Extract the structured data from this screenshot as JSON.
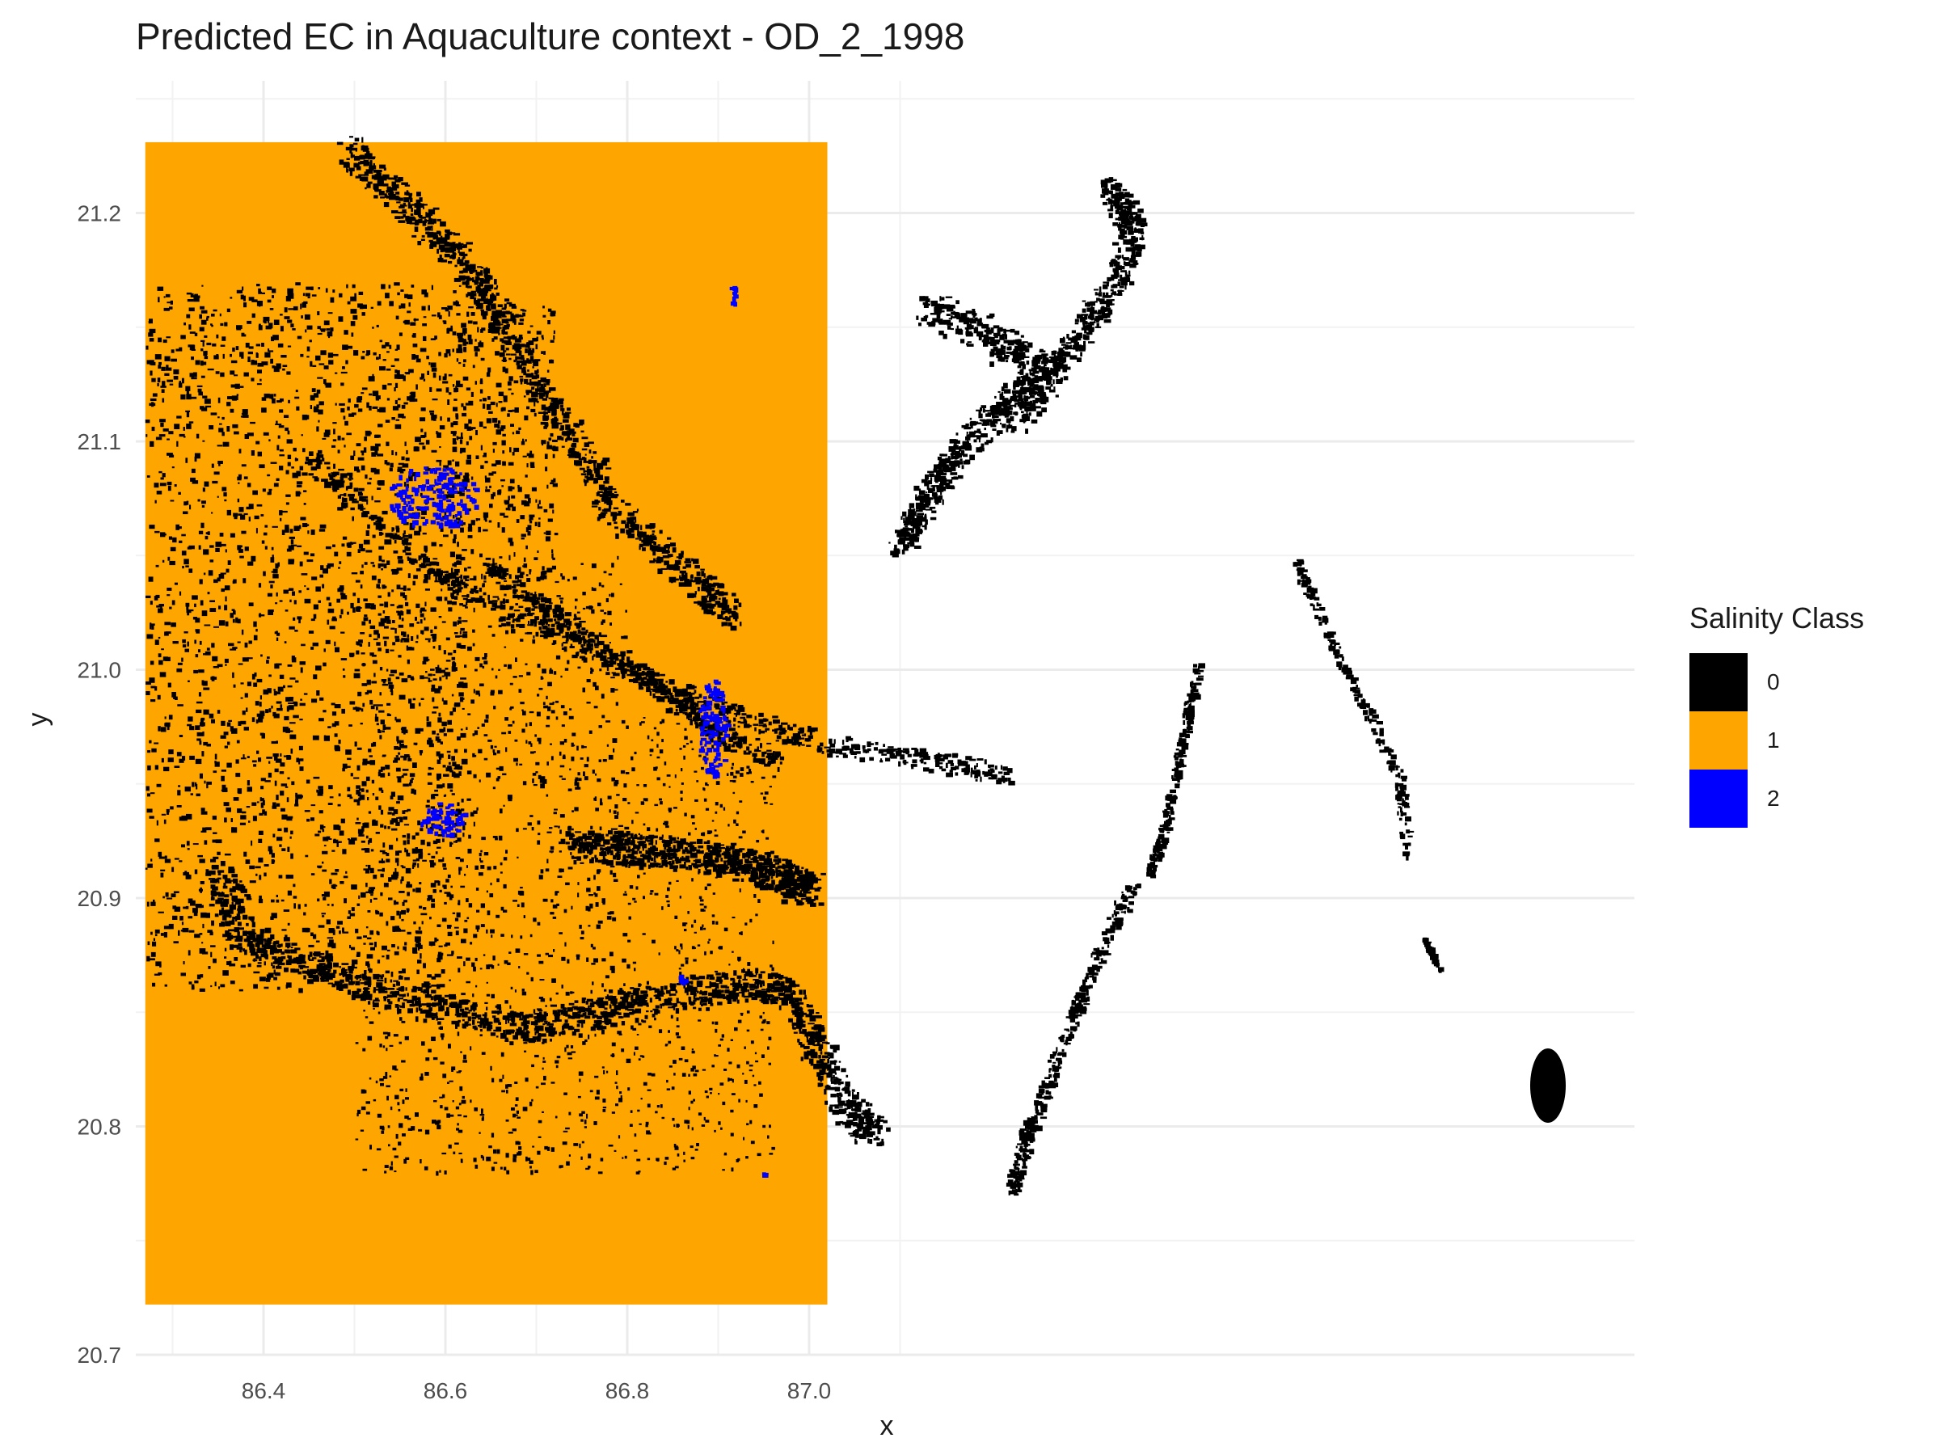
{
  "title": "Predicted EC in Aquaculture context - OD_2_1998",
  "chart_data": {
    "type": "heatmap",
    "title": "Predicted EC in Aquaculture context - OD_2_1998",
    "xlabel": "x",
    "ylabel": "y",
    "x_ticks": [
      "86.4",
      "86.6",
      "86.8",
      "87.0"
    ],
    "y_ticks": [
      "20.7",
      "20.8",
      "20.9",
      "21.0",
      "21.1",
      "21.2"
    ],
    "xlim": [
      86.24,
      87.07
    ],
    "ylim": [
      20.7,
      21.23
    ],
    "raster_extent": {
      "x": [
        86.27,
        87.02
      ],
      "y": [
        20.722,
        21.231
      ]
    },
    "grid": true,
    "legend": {
      "title": "Salinity Class",
      "position": "right",
      "items": [
        {
          "label": "0",
          "color": "#000000"
        },
        {
          "label": "1",
          "color": "#FFA500"
        },
        {
          "label": "2",
          "color": "#0000FF"
        }
      ]
    }
  }
}
